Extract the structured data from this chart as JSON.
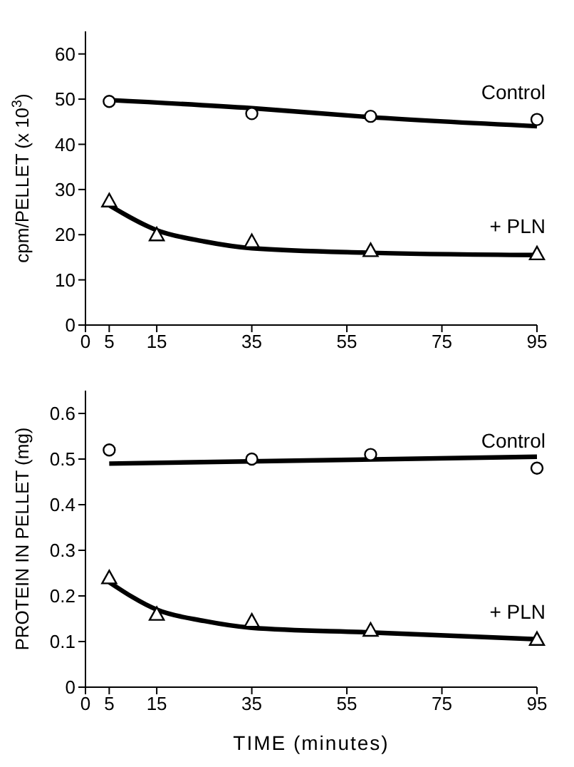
{
  "chart_data": [
    {
      "type": "scatter",
      "ylabel": "cpm/PELLET (x 10$^{3}$)",
      "xlim": [
        0,
        95
      ],
      "xticks": [
        0,
        5,
        15,
        35,
        55,
        75,
        95
      ],
      "ylim": [
        0,
        65
      ],
      "yticks": [
        0,
        10,
        20,
        30,
        40,
        50,
        60
      ],
      "grid": false,
      "legend": false,
      "series": [
        {
          "name": "Control",
          "marker": "circle",
          "color": "#000000",
          "x": [
            5,
            35,
            60,
            95
          ],
          "values": [
            49.5,
            46.8,
            46.2,
            45.5
          ]
        },
        {
          "name": "+ PLN",
          "marker": "triangle",
          "color": "#000000",
          "x": [
            5,
            15,
            35,
            60,
            95
          ],
          "values": [
            27.5,
            20,
            18.5,
            16.5,
            15.8
          ]
        },
        {
          "type": "line",
          "marker": "none",
          "color": "#000000",
          "x": [
            5,
            35,
            60,
            95
          ],
          "values": [
            49.8,
            48,
            46,
            44
          ]
        },
        {
          "type": "line",
          "marker": "none",
          "color": "#000000",
          "x": [
            5,
            15,
            25,
            35,
            60,
            95
          ],
          "values": [
            26.5,
            21,
            18.5,
            17,
            16,
            15.5
          ]
        }
      ]
    },
    {
      "type": "scatter",
      "xlabel": "TIME  (minutes)",
      "ylabel": "PROTEIN IN PELLET (mg)",
      "xlim": [
        0,
        95
      ],
      "xticks": [
        0,
        5,
        15,
        35,
        55,
        75,
        95
      ],
      "ylim": [
        0,
        0.65
      ],
      "yticks": [
        0,
        0.1,
        0.2,
        0.3,
        0.4,
        0.5,
        0.6
      ],
      "grid": false,
      "legend": false,
      "series": [
        {
          "name": "Control",
          "marker": "circle",
          "color": "#000000",
          "x": [
            5,
            35,
            60,
            95
          ],
          "values": [
            0.52,
            0.5,
            0.51,
            0.48
          ]
        },
        {
          "name": "+ PLN",
          "marker": "triangle",
          "color": "#000000",
          "x": [
            5,
            15,
            35,
            60,
            95
          ],
          "values": [
            0.24,
            0.16,
            0.145,
            0.125,
            0.105
          ]
        },
        {
          "type": "line",
          "marker": "none",
          "color": "#000000",
          "x": [
            5,
            95
          ],
          "values": [
            0.49,
            0.505
          ]
        },
        {
          "type": "line",
          "marker": "none",
          "color": "#000000",
          "x": [
            5,
            15,
            25,
            35,
            60,
            95
          ],
          "values": [
            0.23,
            0.17,
            0.145,
            0.13,
            0.12,
            0.105
          ]
        }
      ]
    }
  ]
}
